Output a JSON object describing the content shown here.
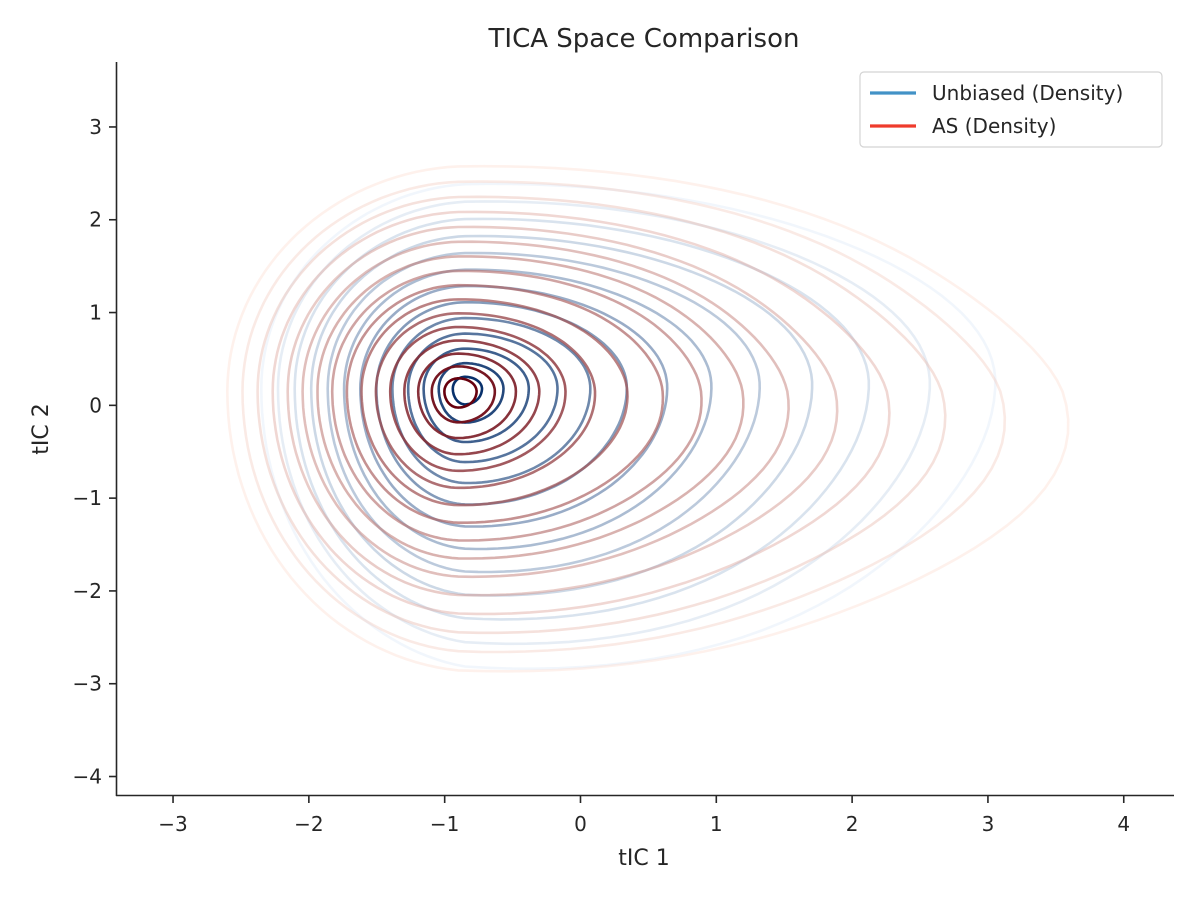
{
  "chart_data": {
    "type": "contour",
    "title": "TICA Space Comparison",
    "xlabel": "tIC 1",
    "ylabel": "tIC 2",
    "xlim": [
      -3.42,
      4.37
    ],
    "ylim": [
      -4.21,
      3.7
    ],
    "xticks": [
      -3,
      -2,
      -1,
      0,
      1,
      2,
      3,
      4
    ],
    "yticks": [
      -4,
      -3,
      -2,
      -1,
      0,
      1,
      2,
      3
    ],
    "xtick_labels": [
      "−3",
      "−2",
      "−1",
      "0",
      "1",
      "2",
      "3",
      "4"
    ],
    "ytick_labels": [
      "−4",
      "−3",
      "−2",
      "−1",
      "0",
      "1",
      "2",
      "3"
    ],
    "grid": false,
    "legend_position": "top-right",
    "series": [
      {
        "name": "Unbiased (Density)",
        "colormap": "Blues",
        "legend_color": "#4292c6",
        "peak": [
          -0.85,
          0.18
        ],
        "levels": 13,
        "outer_extent": {
          "x": [
            -2.35,
            2.75
          ],
          "y": [
            -2.65,
            2.3
          ]
        }
      },
      {
        "name": "AS (Density)",
        "colormap": "Reds",
        "legend_color": "#ef3b2c",
        "peak": [
          -0.9,
          0.15
        ],
        "levels": 16,
        "outer_extent": {
          "x": [
            -2.6,
            3.0
          ],
          "y": [
            -2.75,
            2.5
          ]
        }
      }
    ]
  }
}
